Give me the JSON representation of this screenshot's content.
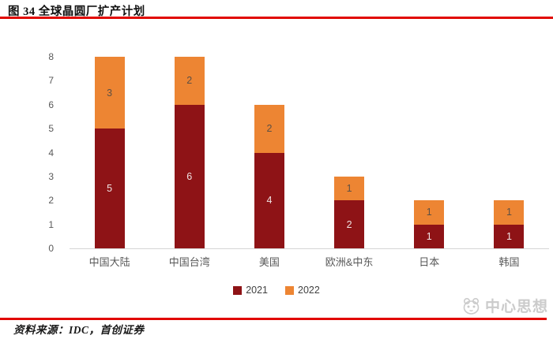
{
  "figure": {
    "title": "图 34 全球晶圆厂扩产计划",
    "source": "资料来源：IDC，首创证券",
    "watermark": "中心思想"
  },
  "colors": {
    "rule_red": "#e10600",
    "axis_text": "#595959",
    "legend_text": "#404040",
    "series_2021": "#8e1316",
    "series_2022": "#ed8533"
  },
  "chart_data": {
    "type": "bar",
    "stacked": true,
    "title": "全球晶圆厂扩产计划",
    "categories": [
      "中国大陆",
      "中国台湾",
      "美国",
      "欧洲&中东",
      "日本",
      "韩国"
    ],
    "series": [
      {
        "name": "2021",
        "color": "#8e1316",
        "label_color": "#f0e4e4",
        "values": [
          5,
          6,
          4,
          2,
          1,
          1
        ]
      },
      {
        "name": "2022",
        "color": "#ed8533",
        "label_color": "#5d5044",
        "values": [
          3,
          2,
          2,
          1,
          1,
          1
        ]
      }
    ],
    "totals": [
      8,
      8,
      6,
      3,
      2,
      2
    ],
    "xlabel": "",
    "ylabel": "",
    "ylim": [
      0,
      8
    ],
    "ytick_step": 1,
    "grid": false,
    "data_labels": true,
    "legend_position": "bottom"
  }
}
